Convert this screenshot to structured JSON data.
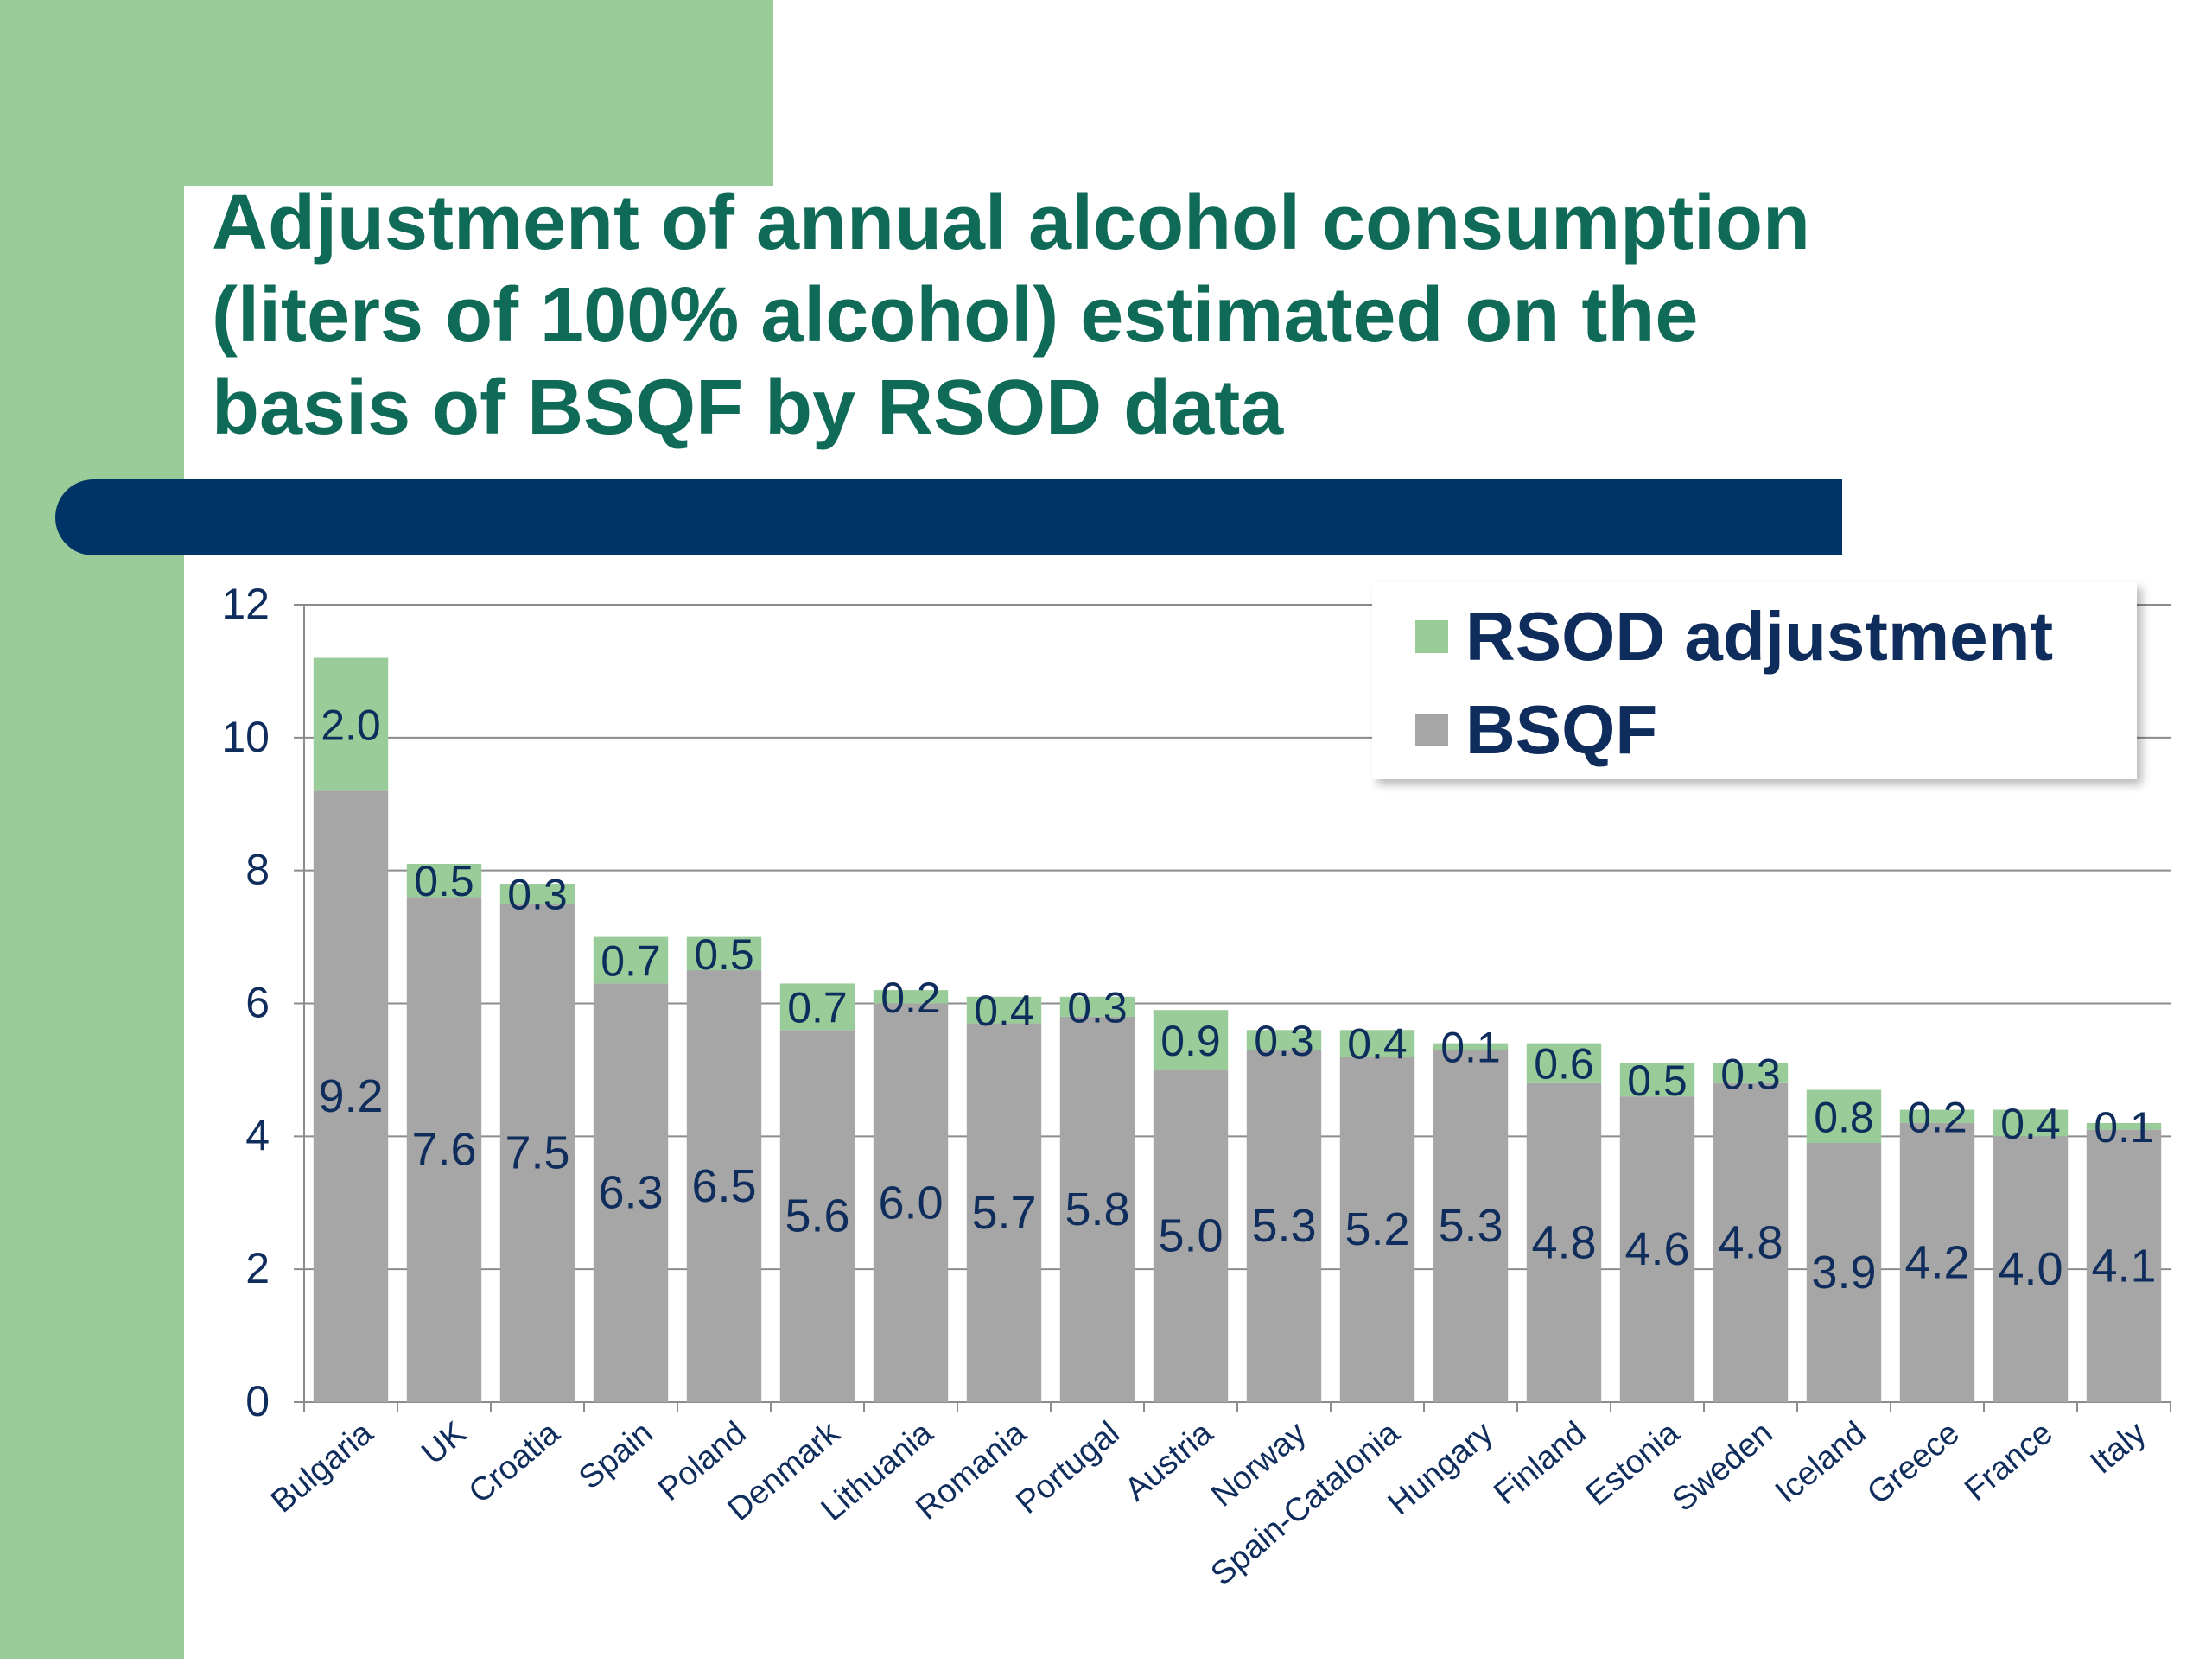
{
  "slide": {
    "title": "Adjustment of annual  alcohol consumption\n(liters of 100% alcohol) estimated on the\nbasis of BSQF by RSOD data"
  },
  "colors": {
    "bsqf": "#a6a6a6",
    "rsod": "#99cc99",
    "label_text": "#0f2d5c",
    "title": "#0f6b57",
    "accent_bar": "#003366"
  },
  "chart_data": {
    "type": "bar",
    "stacked": true,
    "categories": [
      "Bulgaria",
      "UK",
      "Croatia",
      "Spain",
      "Poland",
      "Denmark",
      "Lithuania",
      "Romania",
      "Portugal",
      "Austria",
      "Norway",
      "Spain-Catalonia",
      "Hungary",
      "Finland",
      "Estonia",
      "Sweden",
      "Iceland",
      "Greece",
      "France",
      "Italy"
    ],
    "series": [
      {
        "name": "BSQF",
        "values": [
          9.2,
          7.6,
          7.5,
          6.3,
          6.5,
          5.6,
          6.0,
          5.7,
          5.8,
          5.0,
          5.3,
          5.2,
          5.3,
          4.8,
          4.6,
          4.8,
          3.9,
          4.2,
          4.0,
          4.1
        ]
      },
      {
        "name": "RSOD adjustment",
        "values": [
          2.0,
          0.5,
          0.3,
          0.7,
          0.5,
          0.7,
          0.2,
          0.4,
          0.3,
          0.9,
          0.3,
          0.4,
          0.1,
          0.6,
          0.5,
          0.3,
          0.8,
          0.2,
          0.4,
          0.1
        ]
      }
    ],
    "yticks": [
      "0",
      "2",
      "4",
      "6",
      "8",
      "10",
      "12"
    ],
    "ylim": [
      0,
      12
    ],
    "grid": true,
    "legend": {
      "position": "top-right",
      "entries": [
        "RSOD adjustment",
        "BSQF"
      ]
    }
  }
}
